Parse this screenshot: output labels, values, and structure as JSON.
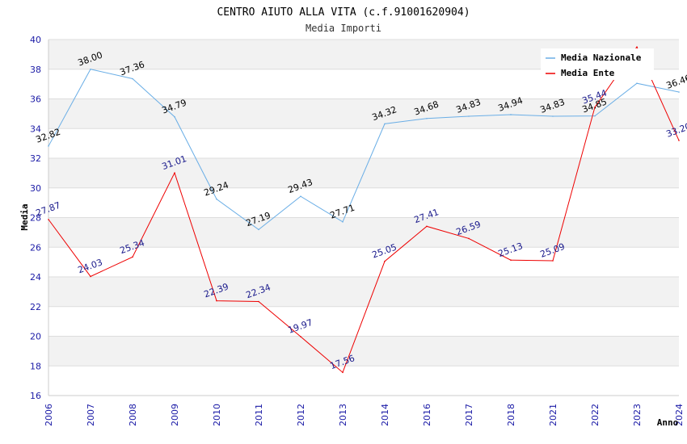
{
  "chart_data": {
    "type": "line",
    "title": "CENTRO AIUTO ALLA VITA (c.f.91001620904)",
    "subtitle": "Media Importi",
    "xlabel": "Anno",
    "ylabel": "Media",
    "ylim": [
      16,
      40
    ],
    "yticks": [
      "16",
      "18",
      "20",
      "22",
      "24",
      "26",
      "28",
      "30",
      "32",
      "34",
      "36",
      "38",
      "40"
    ],
    "categories": [
      "2006",
      "2007",
      "2008",
      "2009",
      "2010",
      "2011",
      "2012",
      "2013",
      "2014",
      "2016",
      "2017",
      "2018",
      "2021",
      "2022",
      "2023",
      "2024"
    ],
    "grid": true,
    "legend_position": "top-right",
    "series": [
      {
        "name": "Media Nazionale",
        "color": "#6aaee6",
        "values": [
          32.82,
          38.0,
          37.36,
          34.79,
          29.24,
          27.19,
          29.43,
          27.71,
          34.32,
          34.68,
          34.83,
          34.94,
          34.83,
          34.85,
          37.05,
          36.46
        ],
        "labels": [
          "32.82",
          "38.00",
          "37.36",
          "34.79",
          "29.24",
          "27.19",
          "29.43",
          "27.71",
          "34.32",
          "34.68",
          "34.83",
          "34.94",
          "34.83",
          "34.85",
          "",
          "36.46"
        ]
      },
      {
        "name": "Media Ente",
        "color": "#ee0000",
        "values": [
          27.87,
          24.03,
          25.34,
          31.01,
          22.39,
          22.34,
          19.97,
          17.56,
          25.05,
          27.41,
          26.59,
          25.13,
          25.09,
          35.44,
          39.5,
          33.2
        ],
        "labels": [
          "27.87",
          "24.03",
          "25.34",
          "31.01",
          "22.39",
          "22.34",
          "19.97",
          "17.56",
          "25.05",
          "27.41",
          "26.59",
          "25.13",
          "25.09",
          "35.44",
          "",
          "33.20"
        ]
      }
    ]
  }
}
